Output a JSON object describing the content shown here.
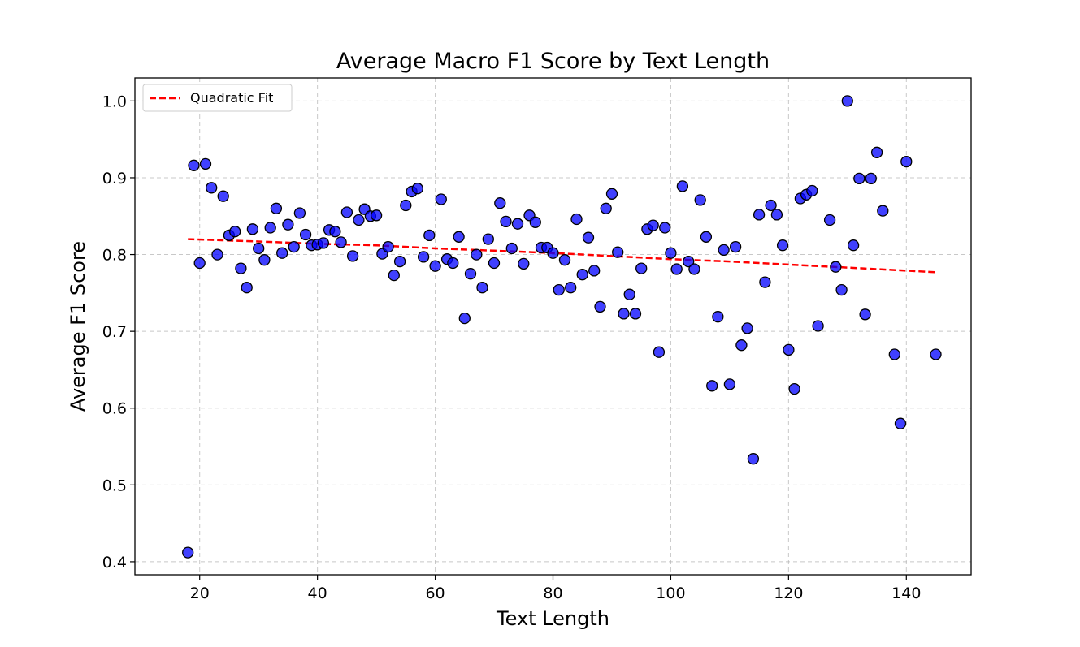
{
  "chart_data": {
    "type": "scatter",
    "title": "Average Macro F1 Score by Text Length",
    "xlabel": "Text Length",
    "ylabel": "Average F1 Score",
    "xlim": [
      9,
      151
    ],
    "ylim": [
      0.383,
      1.03
    ],
    "xticks": [
      20,
      40,
      60,
      80,
      100,
      120,
      140
    ],
    "yticks": [
      0.4,
      0.5,
      0.6,
      0.7,
      0.8,
      0.9,
      1.0
    ],
    "yticklabels": [
      "0.4",
      "0.5",
      "0.6",
      "0.7",
      "0.8",
      "0.9",
      "1.0"
    ],
    "grid": true,
    "legend_position": "top-left",
    "colors": {
      "points": "#0000ff",
      "point_edge": "#000000",
      "fit": "#ff0000"
    },
    "series": [
      {
        "x": [
          18,
          19,
          20,
          21,
          22,
          23,
          24,
          25,
          26,
          27,
          28,
          29,
          30,
          31,
          32,
          33,
          34,
          35,
          36,
          37,
          38,
          39,
          40,
          41,
          42,
          43,
          44,
          45,
          46,
          47,
          48,
          49,
          50,
          51,
          52,
          53,
          54,
          55,
          56,
          57,
          58,
          59,
          60,
          61,
          62,
          63,
          64,
          65,
          66,
          67,
          68,
          69,
          70,
          71,
          72,
          73,
          74,
          75,
          76,
          77,
          78,
          79,
          80,
          81,
          82,
          83,
          84,
          85,
          86,
          87,
          88,
          89,
          90,
          91,
          92,
          93,
          94,
          95,
          96,
          97,
          98,
          99,
          100,
          101,
          102,
          103,
          104,
          105,
          106,
          107,
          108,
          109,
          110,
          111,
          112,
          113,
          114,
          115,
          116,
          117,
          118,
          119,
          120,
          121,
          122,
          123,
          124,
          125,
          127,
          128,
          129,
          130,
          131,
          132,
          133,
          134,
          135,
          136,
          138,
          139,
          140,
          145
        ],
        "y": [
          0.412,
          0.916,
          0.789,
          0.918,
          0.887,
          0.8,
          0.876,
          0.825,
          0.83,
          0.782,
          0.757,
          0.833,
          0.808,
          0.793,
          0.835,
          0.86,
          0.802,
          0.839,
          0.81,
          0.854,
          0.826,
          0.812,
          0.813,
          0.815,
          0.832,
          0.83,
          0.816,
          0.855,
          0.798,
          0.845,
          0.859,
          0.85,
          0.851,
          0.801,
          0.81,
          0.773,
          0.791,
          0.864,
          0.882,
          0.886,
          0.797,
          0.825,
          0.785,
          0.872,
          0.794,
          0.789,
          0.823,
          0.717,
          0.775,
          0.8,
          0.757,
          0.82,
          0.789,
          0.867,
          0.843,
          0.808,
          0.84,
          0.788,
          0.851,
          0.842,
          0.809,
          0.809,
          0.802,
          0.754,
          0.793,
          0.757,
          0.846,
          0.774,
          0.822,
          0.779,
          0.732,
          0.86,
          0.879,
          0.803,
          0.723,
          0.748,
          0.723,
          0.782,
          0.833,
          0.838,
          0.673,
          0.835,
          0.802,
          0.781,
          0.889,
          0.791,
          0.781,
          0.871,
          0.823,
          0.629,
          0.719,
          0.806,
          0.631,
          0.81,
          0.682,
          0.704,
          0.534,
          0.852,
          0.764,
          0.864,
          0.852,
          0.812,
          0.676,
          0.625,
          0.873,
          0.878,
          0.883,
          0.707,
          0.845,
          0.784,
          0.754,
          1.0,
          0.812,
          0.899,
          0.722,
          0.899,
          0.933,
          0.857,
          0.67,
          0.58,
          0.921,
          0.67
        ]
      },
      {
        "name": "Quadratic Fit",
        "x": [
          18,
          30,
          40,
          50,
          60,
          70,
          80,
          90,
          100,
          110,
          120,
          130,
          140,
          145
        ],
        "y": [
          0.82,
          0.817,
          0.814,
          0.812,
          0.808,
          0.805,
          0.802,
          0.798,
          0.794,
          0.791,
          0.787,
          0.783,
          0.779,
          0.777
        ]
      }
    ]
  }
}
